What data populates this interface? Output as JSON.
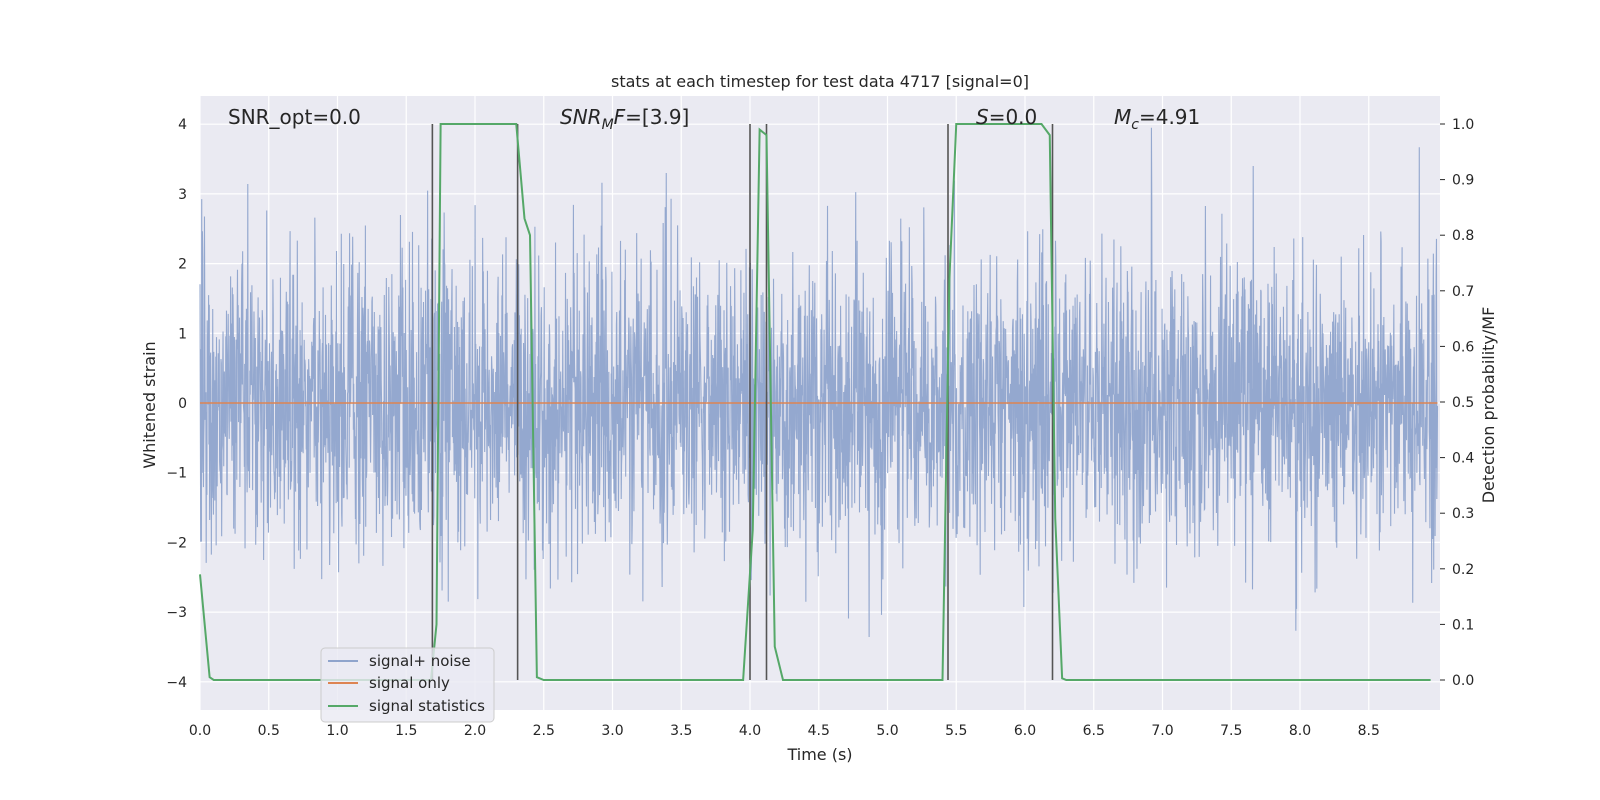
{
  "chart_data": {
    "type": "line",
    "title": "stats at each timestep for test data 4717 [signal=0]",
    "xlabel": "Time (s)",
    "ylabel_left": "Whitened strain",
    "ylabel_right": "Detection probability/MF",
    "xlim": [
      0.0,
      9.0
    ],
    "ylim_left": [
      -4.4,
      4.4
    ],
    "ylim_right": [
      -0.05,
      1.05
    ],
    "x_ticks": [
      "0.0",
      "0.5",
      "1.0",
      "1.5",
      "2.0",
      "2.5",
      "3.0",
      "3.5",
      "4.0",
      "4.5",
      "5.0",
      "5.5",
      "6.0",
      "6.5",
      "7.0",
      "7.5",
      "8.0",
      "8.5"
    ],
    "y_left_ticks": [
      "−4",
      "−3",
      "−2",
      "−1",
      "0",
      "1",
      "2",
      "3",
      "4"
    ],
    "y_right_ticks": [
      "0.0",
      "0.1",
      "0.2",
      "0.3",
      "0.4",
      "0.5",
      "0.6",
      "0.7",
      "0.8",
      "0.9",
      "1.0"
    ],
    "grid": true,
    "legend_position": "lower-left",
    "annotations": {
      "snr_opt": "SNR_opt=0.0",
      "snr_mf_main": "SNR",
      "snr_mf_sub": "M",
      "snr_mf_tail": "F",
      "snr_mf_value": "=[3.9]",
      "s_main": "S",
      "s_value": "=0.0",
      "mc_main": "M",
      "mc_sub": "c",
      "mc_value": "=4.91"
    },
    "series": [
      {
        "name": "signal+ noise",
        "axis": "left",
        "color": "#8fa4cc",
        "description": "whitened noise, approx ±2.4 sigma envelope with spikes to ±3.9",
        "envelope": [
          -2.4,
          2.4
        ]
      },
      {
        "name": "signal only",
        "axis": "left",
        "color": "#dd8452",
        "x": [
          0.0,
          9.0
        ],
        "y": [
          0.0,
          0.0
        ]
      },
      {
        "name": "signal statistics",
        "axis": "right",
        "color": "#55a868",
        "x": [
          0.0,
          0.07,
          0.1,
          1.68,
          1.72,
          1.75,
          2.3,
          2.36,
          2.4,
          2.45,
          2.5,
          3.95,
          4.02,
          4.07,
          4.12,
          4.18,
          4.24,
          5.4,
          5.45,
          5.5,
          6.12,
          6.18,
          6.22,
          6.27,
          6.3,
          8.95
        ],
        "y": [
          0.19,
          0.005,
          0.0,
          0.0,
          0.1,
          1.0,
          1.0,
          0.83,
          0.8,
          0.005,
          0.0,
          0.0,
          0.27,
          0.99,
          0.98,
          0.06,
          0.0,
          0.0,
          0.72,
          1.0,
          1.0,
          0.98,
          0.29,
          0.003,
          0.0,
          0.0
        ]
      }
    ],
    "vertical_markers": [
      1.69,
      2.31,
      4.0,
      4.12,
      5.44,
      6.2
    ]
  }
}
